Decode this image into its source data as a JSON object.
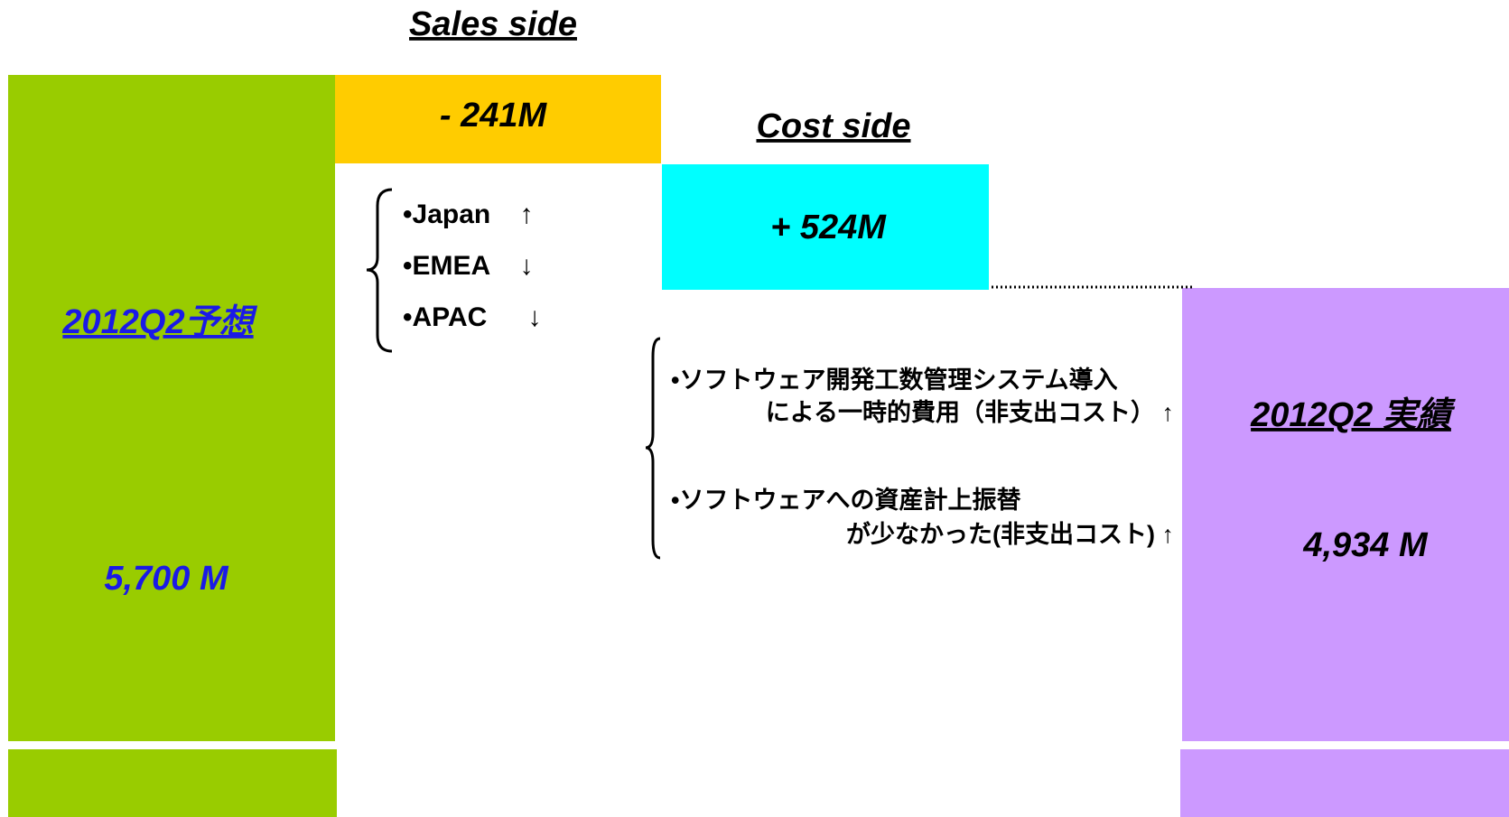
{
  "sales": {
    "title": "Sales side",
    "amount": "- 241M",
    "items": [
      {
        "label": "•Japan",
        "trend": "↑"
      },
      {
        "label": "•EMEA",
        "trend": "↓"
      },
      {
        "label": "•APAC",
        "trend": "↓"
      }
    ]
  },
  "cost": {
    "title": "Cost side",
    "amount": "+ 524M",
    "items": [
      {
        "lines": [
          "•ソフトウェア開発工数管理システム導入",
          "による一時的費用（非支出コスト） ↑"
        ]
      },
      {
        "lines": [
          "•ソフトウェアへの資産計上振替",
          "が少なかった(非支出コスト) ↑"
        ]
      }
    ]
  },
  "forecast": {
    "label": "2012Q2予想",
    "amount": "5,700 M"
  },
  "actual": {
    "label": "2012Q2 実績",
    "amount": "4,934 M"
  }
}
